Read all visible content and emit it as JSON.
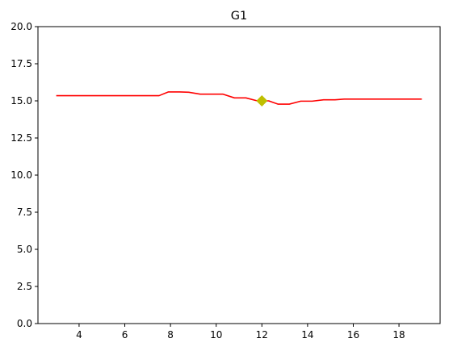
{
  "chart_data": {
    "type": "line",
    "title": "G1",
    "xlabel": "",
    "ylabel": "",
    "xlim": [
      2.2,
      19.8
    ],
    "ylim": [
      0,
      20
    ],
    "xticks": [
      4,
      6,
      8,
      10,
      12,
      14,
      16,
      18
    ],
    "xtick_labels": [
      "4",
      "6",
      "8",
      "10",
      "12",
      "14",
      "16",
      "18"
    ],
    "yticks": [
      0,
      2.5,
      5,
      7.5,
      10,
      12.5,
      15,
      17.5,
      20
    ],
    "ytick_labels": [
      "0.0",
      "2.5",
      "5.0",
      "7.5",
      "10.0",
      "12.5",
      "15.0",
      "17.5",
      "20.0"
    ],
    "grid": false,
    "series": [
      {
        "color": "#ff0000",
        "x": [
          3.0,
          3.5,
          4.0,
          4.5,
          5.0,
          5.5,
          6.0,
          6.5,
          7.0,
          7.5,
          7.9,
          8.4,
          8.8,
          9.3,
          9.8,
          10.3,
          10.8,
          11.3,
          11.8,
          12.3,
          12.7,
          13.2,
          13.7,
          14.2,
          14.7,
          15.2,
          15.6,
          16.1,
          16.6,
          17.1,
          17.6,
          18.1,
          18.5,
          19.0
        ],
        "y": [
          15.35,
          15.35,
          15.35,
          15.35,
          15.35,
          15.35,
          15.35,
          15.35,
          15.35,
          15.35,
          15.6,
          15.6,
          15.58,
          15.45,
          15.45,
          15.45,
          15.2,
          15.2,
          15.0,
          15.0,
          14.78,
          14.78,
          14.98,
          14.98,
          15.07,
          15.07,
          15.12,
          15.12,
          15.12,
          15.12,
          15.12,
          15.12,
          15.12,
          15.12
        ]
      }
    ],
    "markers": [
      {
        "x": 12,
        "y": 15.0,
        "shape": "diamond",
        "color": "#bfbf00"
      }
    ]
  }
}
